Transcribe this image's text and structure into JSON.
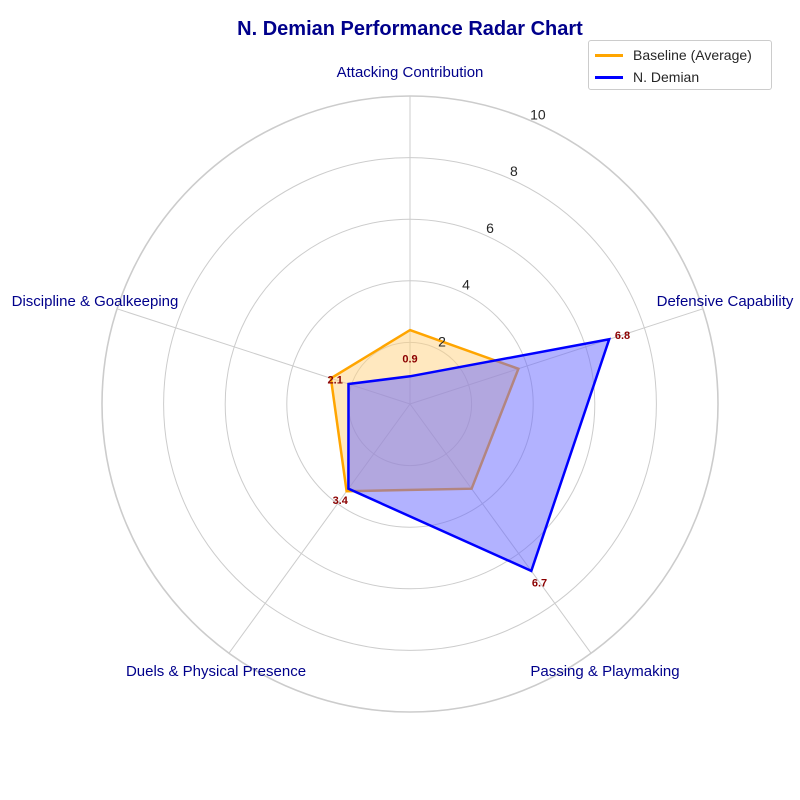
{
  "chart_data": {
    "type": "radar",
    "title": "N. Demian Performance Radar Chart",
    "categories": [
      "Attacking Contribution",
      "Defensive Capability",
      "Passing & Playmaking",
      "Duels & Physical Presence",
      "Discipline & Goalkeeping"
    ],
    "radial_ticks": [
      "2",
      "4",
      "6",
      "8",
      "10"
    ],
    "radial_range": [
      0,
      10
    ],
    "grid": true,
    "legend_position": "top-right",
    "series": [
      {
        "name": "Baseline (Average)",
        "values": [
          2.4,
          3.7,
          3.4,
          3.5,
          2.7
        ],
        "color": "#ffa500",
        "fill": "#ffd27f"
      },
      {
        "name": "N. Demian",
        "values": [
          0.9,
          6.8,
          6.7,
          3.4,
          2.1
        ],
        "color": "#0000ff",
        "fill": "#6666ff",
        "show_labels": true
      }
    ],
    "value_label_color": "#8b0000",
    "category_label_color": "#00008b"
  }
}
